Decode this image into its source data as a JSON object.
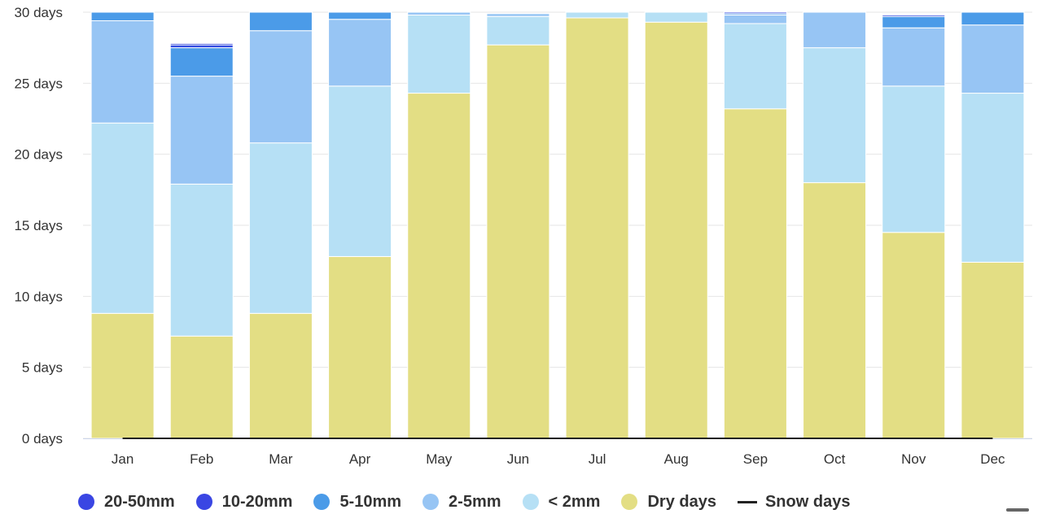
{
  "chart_data": {
    "type": "bar",
    "stacked": true,
    "categories": [
      "Jan",
      "Feb",
      "Mar",
      "Apr",
      "May",
      "Jun",
      "Jul",
      "Aug",
      "Sep",
      "Oct",
      "Nov",
      "Dec"
    ],
    "y_ticks": [
      "0 days",
      "5 days",
      "10 days",
      "15 days",
      "20 days",
      "25 days",
      "30 days"
    ],
    "ylim": [
      0,
      30
    ],
    "grid": true,
    "legend_position": "bottom",
    "series": [
      {
        "name": "Dry days",
        "color": "#e3de84",
        "values": [
          8.8,
          7.2,
          8.8,
          12.8,
          24.3,
          27.7,
          29.6,
          29.3,
          23.2,
          18.0,
          14.5,
          12.4
        ]
      },
      {
        "name": "< 2mm",
        "color": "#b6e0f5",
        "values": [
          13.4,
          10.7,
          12.0,
          12.0,
          5.5,
          2.0,
          0.4,
          0.7,
          6.0,
          9.5,
          10.3,
          11.9
        ]
      },
      {
        "name": "2-5mm",
        "color": "#97c5f4",
        "values": [
          7.2,
          7.6,
          7.9,
          4.7,
          0.2,
          0.2,
          0,
          0,
          0.6,
          2.5,
          4.1,
          4.8
        ]
      },
      {
        "name": "5-10mm",
        "color": "#4b9be8",
        "values": [
          0.6,
          2.0,
          1.3,
          0.5,
          0,
          0,
          0,
          0,
          0.1,
          0,
          0.8,
          0.9
        ]
      },
      {
        "name": "10-20mm",
        "color": "#3049e0",
        "values": [
          0,
          0.2,
          0,
          0,
          0,
          0,
          0,
          0,
          0.1,
          0,
          0.1,
          0
        ]
      },
      {
        "name": "20-50mm",
        "color": "#2e3fd8",
        "values": [
          0,
          0.1,
          0,
          0,
          0,
          0,
          0,
          0,
          0,
          0,
          0,
          0
        ]
      }
    ],
    "line_series": {
      "name": "Snow days",
      "color": "#222222",
      "values": [
        0,
        0,
        0,
        0,
        0,
        0,
        0,
        0,
        0,
        0,
        0,
        0
      ]
    },
    "legend": [
      {
        "label": "20-50mm",
        "color": "#3a46e3",
        "shape": "dot"
      },
      {
        "label": "10-20mm",
        "color": "#3a46e3",
        "shape": "dot"
      },
      {
        "label": "5-10mm",
        "color": "#4b9be8",
        "shape": "dot"
      },
      {
        "label": "2-5mm",
        "color": "#97c5f4",
        "shape": "dot"
      },
      {
        "label": "< 2mm",
        "color": "#b6e0f5",
        "shape": "dot"
      },
      {
        "label": "Dry days",
        "color": "#e3de84",
        "shape": "dot"
      },
      {
        "label": "Snow days",
        "color": "#222222",
        "shape": "line"
      }
    ]
  }
}
